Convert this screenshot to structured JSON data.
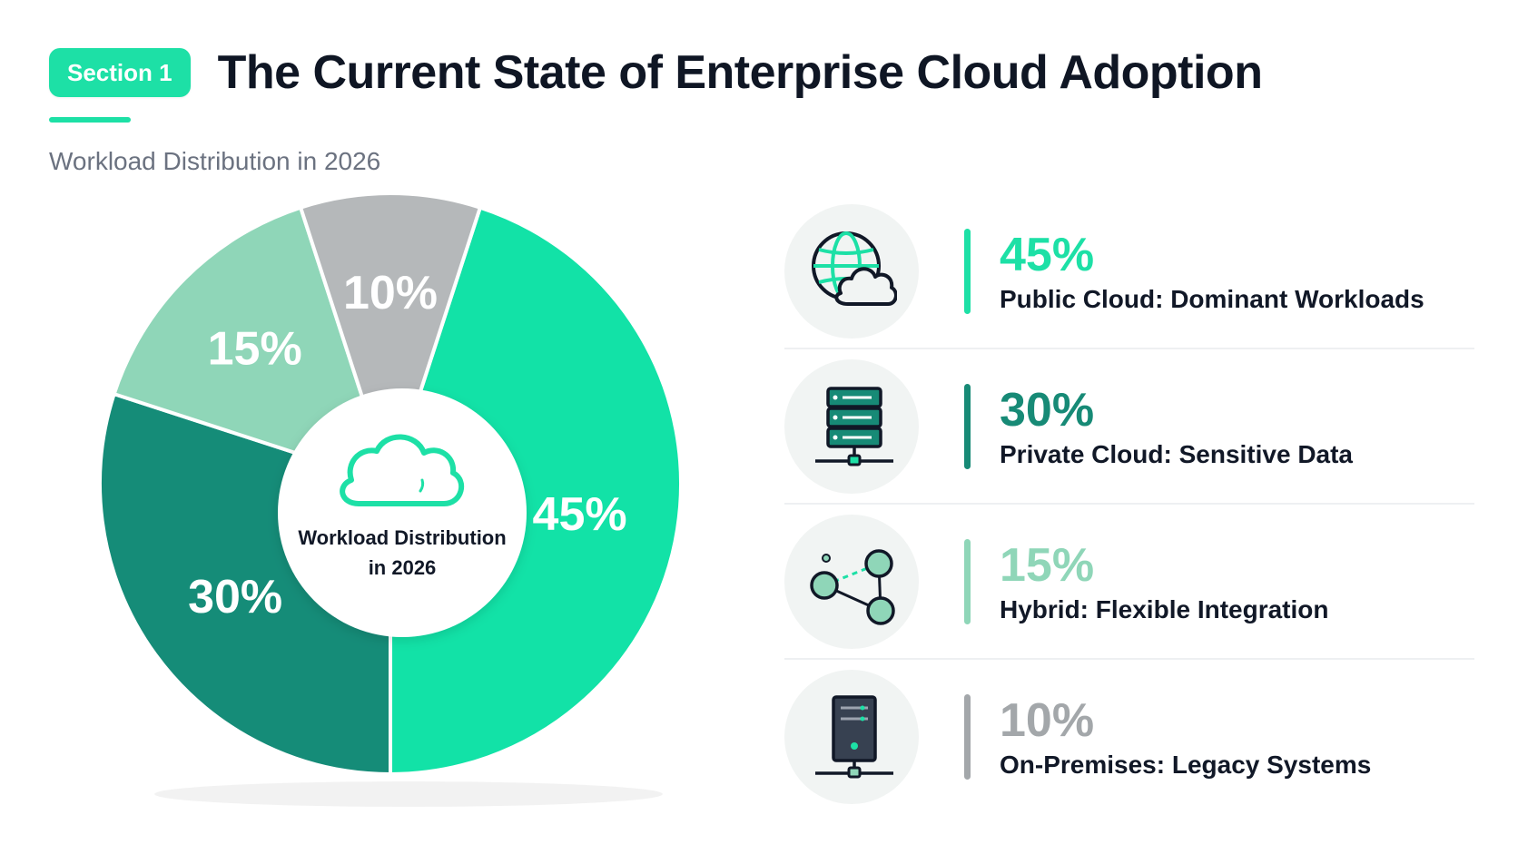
{
  "header": {
    "section_badge": "Section 1",
    "title": "The Current State of Enterprise Cloud Adoption",
    "subtitle": "Workload Distribution in 2026"
  },
  "center": {
    "line1": "Workload Distribution",
    "line2": "in 2026",
    "icon": "cloud-icon"
  },
  "chart_data": {
    "type": "pie",
    "title": "Workload Distribution in 2026",
    "slices": [
      {
        "label": "Public Cloud: Dominant Workloads",
        "value": 45,
        "value_label": "45%",
        "color": "#12e2a7"
      },
      {
        "label": "Private Cloud: Sensitive Data",
        "value": 30,
        "value_label": "30%",
        "color": "#158c78"
      },
      {
        "label": "Hybrid: Flexible Integration",
        "value": 15,
        "value_label": "15%",
        "color": "#8fd6b8"
      },
      {
        "label": "On-Premises: Legacy Systems",
        "value": 10,
        "value_label": "10%",
        "color": "#b5b8ba"
      }
    ]
  },
  "legend": [
    {
      "value": "45%",
      "label": "Public Cloud: Dominant Workloads",
      "color": "#1de0a6",
      "icon": "globe-cloud-icon"
    },
    {
      "value": "30%",
      "label": "Private Cloud: Sensitive Data",
      "color": "#178a76",
      "icon": "server-stack-icon"
    },
    {
      "value": "15%",
      "label": "Hybrid: Flexible Integration",
      "color": "#8fd6b8",
      "icon": "network-nodes-icon"
    },
    {
      "value": "10%",
      "label": "On-Premises: Legacy Systems",
      "color": "#a3a7aa",
      "icon": "server-tower-icon"
    }
  ]
}
